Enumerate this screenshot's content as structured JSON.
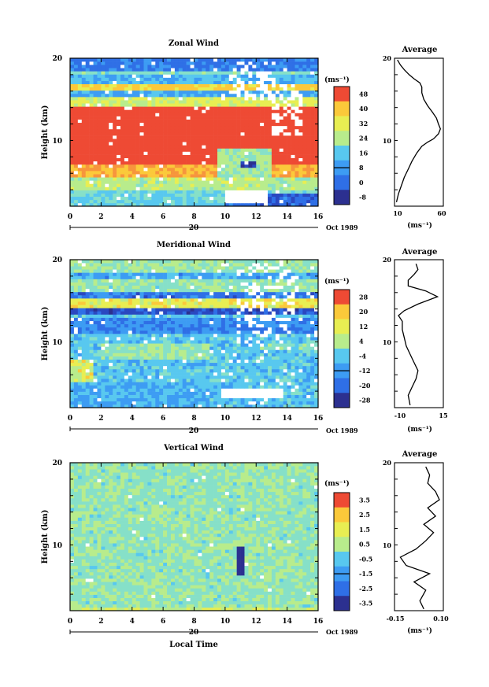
{
  "chart_data": [
    {
      "type": "heatmap",
      "title": "Zonal Wind",
      "xlabel": "",
      "ylabel": "Height (km)",
      "xlim": [
        0,
        16
      ],
      "ylim": [
        2,
        20
      ],
      "x_ticks": [
        "0",
        "2",
        "4",
        "6",
        "8",
        "10",
        "12",
        "14",
        "16"
      ],
      "y_ticks": [
        "10",
        "20"
      ],
      "date_day_label": "20",
      "date_label": "Oct 1989",
      "unit_label": "(ms⁻¹)",
      "colorbar_levels": [
        "48",
        "40",
        "32",
        "24",
        "16",
        "8",
        "0",
        "-8"
      ],
      "colorbar_range": [
        -12,
        52
      ],
      "profile": {
        "title": "Average",
        "xlim": [
          10,
          60
        ],
        "x_ticks": [
          "10",
          "60"
        ],
        "xlabel": "(ms⁻¹)",
        "points": [
          [
            12,
            2.5
          ],
          [
            14,
            3.5
          ],
          [
            17,
            4.5
          ],
          [
            20,
            5.5
          ],
          [
            24,
            6.5
          ],
          [
            28,
            7.5
          ],
          [
            33,
            8.5
          ],
          [
            38,
            9.3
          ],
          [
            44,
            9.8
          ],
          [
            50,
            10.2
          ],
          [
            55,
            10.8
          ],
          [
            57,
            11.4
          ],
          [
            55,
            12
          ],
          [
            53,
            12.7
          ],
          [
            49,
            13.4
          ],
          [
            44,
            14.2
          ],
          [
            40,
            15
          ],
          [
            38,
            15.8
          ],
          [
            38,
            16.5
          ],
          [
            36,
            17
          ],
          [
            30,
            17.5
          ],
          [
            25,
            18
          ],
          [
            20,
            18.6
          ],
          [
            16,
            19.2
          ],
          [
            13,
            19.8
          ]
        ]
      },
      "description_regions": [
        {
          "value": 52,
          "y0": 7,
          "y1": 14
        },
        {
          "value": 40,
          "y0": 5.5,
          "y1": 7
        },
        {
          "value": 28,
          "y0": 4,
          "y1": 5.5
        },
        {
          "value": 16,
          "y0": 2,
          "y1": 4
        },
        {
          "value": 30,
          "y0": 14,
          "y1": 15.5
        },
        {
          "value": 10,
          "y0": 15.5,
          "y1": 16.2
        },
        {
          "value": 36,
          "y0": 16.2,
          "y1": 17
        },
        {
          "value": 12,
          "y0": 17,
          "y1": 18
        },
        {
          "value": 20,
          "y0": 18,
          "y1": 18.6
        },
        {
          "value": 4,
          "y0": 18.6,
          "y1": 20
        }
      ]
    },
    {
      "type": "heatmap",
      "title": "Meridional Wind",
      "xlabel": "",
      "ylabel": "Height (km)",
      "xlim": [
        0,
        16
      ],
      "ylim": [
        2,
        20
      ],
      "x_ticks": [
        "0",
        "2",
        "4",
        "6",
        "8",
        "10",
        "12",
        "14",
        "16"
      ],
      "y_ticks": [
        "10",
        "20"
      ],
      "date_day_label": "20",
      "date_label": "Oct 1989",
      "unit_label": "(ms⁻¹)",
      "colorbar_levels": [
        "28",
        "20",
        "12",
        "4",
        "-4",
        "-12",
        "-20",
        "-28"
      ],
      "colorbar_range": [
        -32,
        32
      ],
      "profile": {
        "title": "Average",
        "xlim": [
          -10,
          15
        ],
        "x_ticks": [
          "-10",
          "15"
        ],
        "xlabel": "(ms⁻¹)",
        "points": [
          [
            -2,
            2.3
          ],
          [
            -3,
            3.5
          ],
          [
            -1,
            4.5
          ],
          [
            1,
            5.5
          ],
          [
            2,
            6.5
          ],
          [
            0,
            7.5
          ],
          [
            -2,
            8.5
          ],
          [
            -4,
            9.5
          ],
          [
            -5,
            10.5
          ],
          [
            -6,
            11.5
          ],
          [
            -6,
            12.5
          ],
          [
            -8,
            13.2
          ],
          [
            -5,
            13.8
          ],
          [
            2,
            14.6
          ],
          [
            12,
            15.5
          ],
          [
            6,
            16.2
          ],
          [
            -3,
            16.8
          ],
          [
            -3,
            17.5
          ],
          [
            0,
            18.2
          ],
          [
            2,
            18.8
          ],
          [
            1,
            19.5
          ]
        ]
      }
    },
    {
      "type": "heatmap",
      "title": "Vertical Wind",
      "xlabel": "Local Time",
      "ylabel": "Height (km)",
      "xlim": [
        0,
        16
      ],
      "ylim": [
        2,
        20
      ],
      "x_ticks": [
        "0",
        "2",
        "4",
        "6",
        "8",
        "10",
        "12",
        "14",
        "16"
      ],
      "y_ticks": [
        "10",
        "20"
      ],
      "date_day_label": "20",
      "date_label": "Oct 1989",
      "unit_label": "(ms⁻¹)",
      "colorbar_levels": [
        "3.5",
        "2.5",
        "1.5",
        "0.5",
        "-0.5",
        "-1.5",
        "-2.5",
        "-3.5"
      ],
      "colorbar_range": [
        -4,
        4
      ],
      "profile": {
        "title": "Average",
        "xlim": [
          -0.15,
          0.1
        ],
        "x_ticks": [
          "-0.15",
          "0.10"
        ],
        "xlabel": "(ms⁻¹)",
        "points": [
          [
            0.0,
            2.2
          ],
          [
            -0.02,
            3.2
          ],
          [
            0.01,
            4.5
          ],
          [
            -0.05,
            5.5
          ],
          [
            0.03,
            6.5
          ],
          [
            -0.09,
            7.5
          ],
          [
            -0.12,
            8.5
          ],
          [
            -0.04,
            9.5
          ],
          [
            0.01,
            10.5
          ],
          [
            0.05,
            11.5
          ],
          [
            0.0,
            12.5
          ],
          [
            0.06,
            13.5
          ],
          [
            0.02,
            14.5
          ],
          [
            0.08,
            15.5
          ],
          [
            0.06,
            16.5
          ],
          [
            0.02,
            17.5
          ],
          [
            0.03,
            18.5
          ],
          [
            0.01,
            19.5
          ]
        ]
      }
    }
  ],
  "colors": {
    "scale": [
      "#2c3090",
      "#2a48c0",
      "#2f6fe6",
      "#3d9cf3",
      "#58c8ef",
      "#86e0c8",
      "#b8ec8c",
      "#e8ee52",
      "#fbc93a",
      "#f7953c",
      "#ee4a34"
    ],
    "missing": "#ffffff"
  }
}
